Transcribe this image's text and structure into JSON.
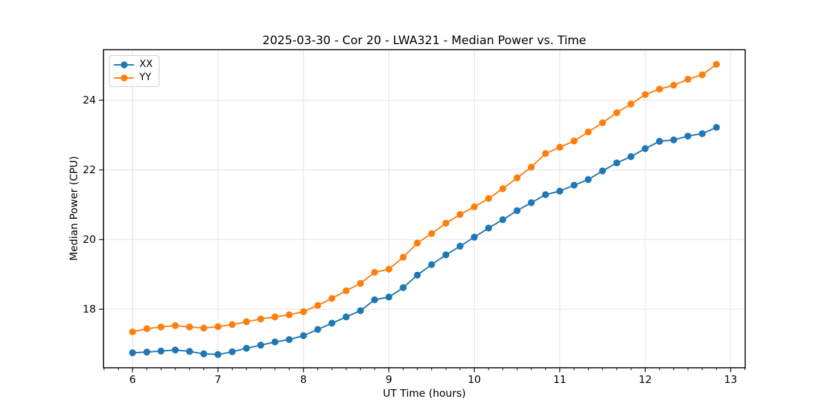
{
  "chart_data": {
    "type": "line",
    "title": "2025-03-30 - Cor 20 - LWA321 - Median Power vs. Time",
    "xlabel": "UT Time (hours)",
    "ylabel": "Median Power (CPU)",
    "xlim": [
      5.66,
      13.17
    ],
    "ylim": [
      16.32,
      25.45
    ],
    "x_major_ticks": [
      6,
      7,
      8,
      9,
      10,
      11,
      12,
      13
    ],
    "y_major_ticks": [
      18,
      20,
      22,
      24
    ],
    "x_minor_tick_interval": 0.16667,
    "grid": true,
    "grid_color": "#e0e0e0",
    "axis_color": "#000000",
    "background": "#ffffff",
    "legend_position": "upper left",
    "x": [
      6.0,
      6.167,
      6.333,
      6.5,
      6.667,
      6.833,
      7.0,
      7.167,
      7.333,
      7.5,
      7.667,
      7.833,
      8.0,
      8.167,
      8.333,
      8.5,
      8.667,
      8.833,
      9.0,
      9.167,
      9.333,
      9.5,
      9.667,
      9.833,
      10.0,
      10.167,
      10.333,
      10.5,
      10.667,
      10.833,
      11.0,
      11.167,
      11.333,
      11.5,
      11.667,
      11.833,
      12.0,
      12.167,
      12.333,
      12.5,
      12.667,
      12.833
    ],
    "series": [
      {
        "name": "XX",
        "color": "#1f77b4",
        "marker": "circle",
        "values": [
          16.75,
          16.77,
          16.8,
          16.83,
          16.79,
          16.72,
          16.7,
          16.78,
          16.88,
          16.97,
          17.06,
          17.13,
          17.24,
          17.42,
          17.6,
          17.78,
          17.96,
          18.27,
          18.35,
          18.62,
          18.98,
          19.28,
          19.56,
          19.81,
          20.07,
          20.33,
          20.57,
          20.83,
          21.06,
          21.29,
          21.39,
          21.56,
          21.72,
          21.97,
          22.2,
          22.38,
          22.61,
          22.82,
          22.86,
          22.97,
          23.04,
          23.22
        ]
      },
      {
        "name": "YY",
        "color": "#ff7f0e",
        "marker": "circle",
        "values": [
          17.35,
          17.44,
          17.49,
          17.53,
          17.49,
          17.46,
          17.5,
          17.56,
          17.64,
          17.72,
          17.78,
          17.84,
          17.93,
          18.11,
          18.31,
          18.53,
          18.74,
          19.06,
          19.15,
          19.49,
          19.9,
          20.17,
          20.47,
          20.72,
          20.94,
          21.18,
          21.46,
          21.77,
          22.08,
          22.47,
          22.65,
          22.83,
          23.09,
          23.35,
          23.64,
          23.89,
          24.16,
          24.32,
          24.43,
          24.6,
          24.73,
          25.03
        ]
      }
    ]
  }
}
